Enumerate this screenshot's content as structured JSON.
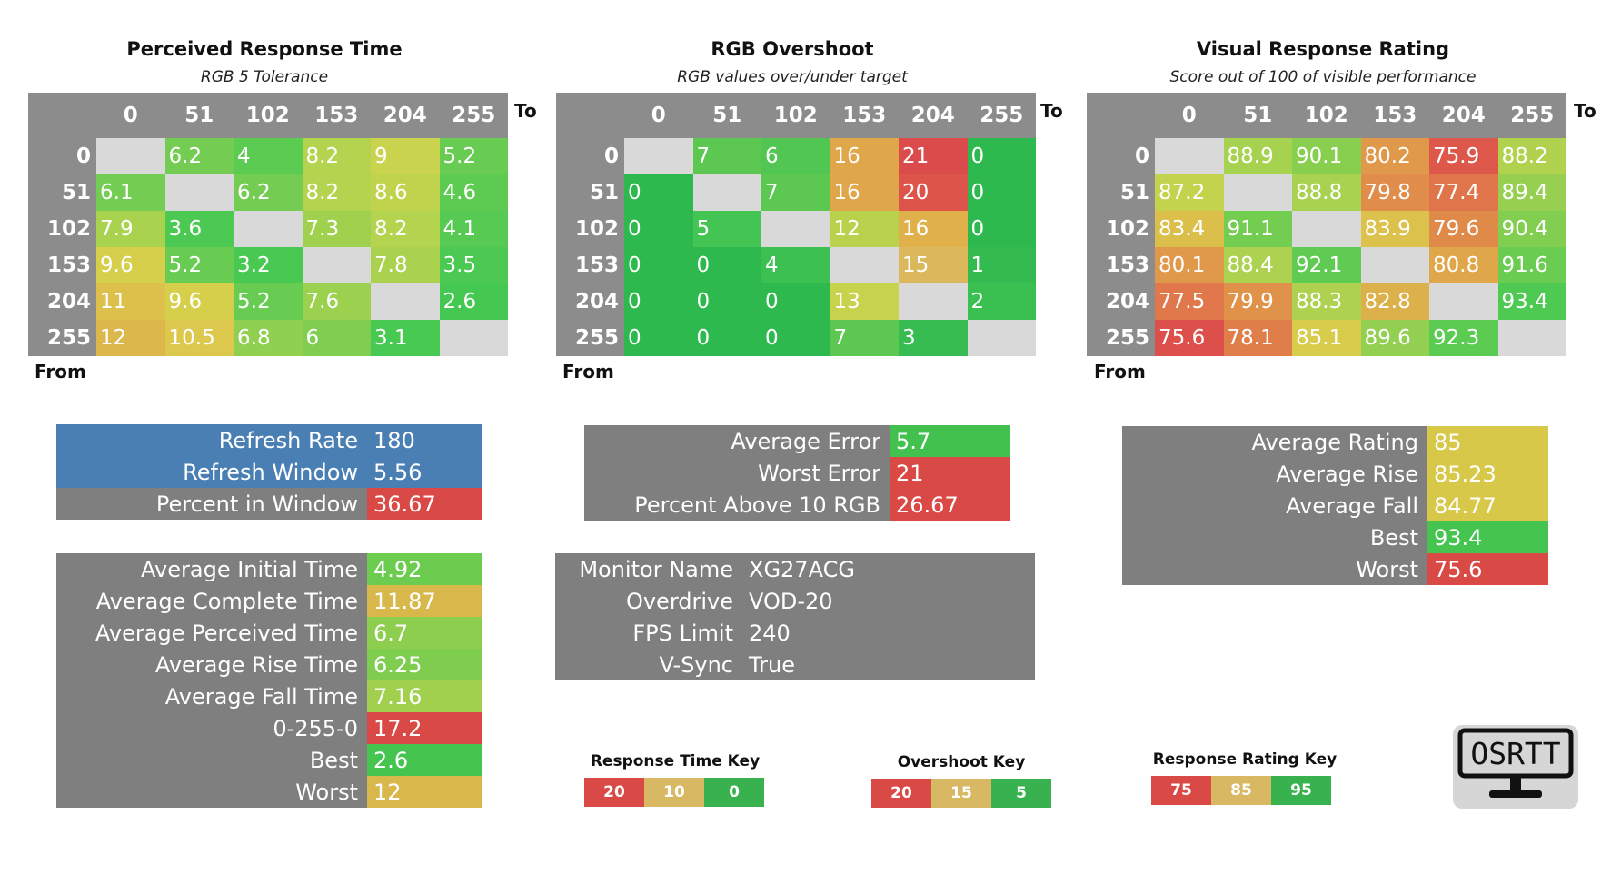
{
  "chart_data": [
    {
      "type": "heatmap",
      "title": "Perceived Response Time",
      "subtitle": "RGB 5 Tolerance",
      "xlabel": "To",
      "ylabel": "From",
      "columns": [
        "0",
        "51",
        "102",
        "153",
        "204",
        "255"
      ],
      "rows": [
        "0",
        "51",
        "102",
        "153",
        "204",
        "255"
      ],
      "values": [
        [
          "",
          "6.2",
          "4",
          "8.2",
          "9",
          "5.2"
        ],
        [
          "6.1",
          "",
          "6.2",
          "8.2",
          "8.6",
          "4.6"
        ],
        [
          "7.9",
          "3.6",
          "",
          "7.3",
          "8.2",
          "4.1"
        ],
        [
          "9.6",
          "5.2",
          "3.2",
          "",
          "7.8",
          "3.5"
        ],
        [
          "11",
          "9.6",
          "5.2",
          "7.6",
          "",
          "2.6"
        ],
        [
          "12",
          "10.5",
          "6.8",
          "6",
          "3.1",
          ""
        ]
      ],
      "colors": [
        [
          "",
          "#74cd52",
          "#5ccb52",
          "#b4d34e",
          "#c9d34d",
          "#68cc52"
        ],
        [
          "#73cd52",
          "",
          "#74cd52",
          "#b4d34e",
          "#bfd34d",
          "#5dcb52"
        ],
        [
          "#a9d24e",
          "#4bc952",
          "",
          "#9fd14f",
          "#b4d34e",
          "#56ca52"
        ],
        [
          "#d6cf4c",
          "#68cc52",
          "#49c952",
          "",
          "#aad24f",
          "#4cc952"
        ],
        [
          "#dcc04b",
          "#d6cf4c",
          "#68cc52",
          "#9bd14f",
          "",
          "#44c852"
        ],
        [
          "#dcb74b",
          "#dcc84c",
          "#8fd050",
          "#80ce51",
          "#48c952",
          ""
        ]
      ]
    },
    {
      "type": "heatmap",
      "title": "RGB Overshoot",
      "subtitle": "RGB values over/under target",
      "xlabel": "To",
      "ylabel": "From",
      "columns": [
        "0",
        "51",
        "102",
        "153",
        "204",
        "255"
      ],
      "rows": [
        "0",
        "51",
        "102",
        "153",
        "204",
        "255"
      ],
      "values": [
        [
          "",
          "7",
          "6",
          "16",
          "21",
          "0"
        ],
        [
          "0",
          "",
          "7",
          "16",
          "20",
          "0"
        ],
        [
          "0",
          "5",
          "",
          "12",
          "16",
          "0"
        ],
        [
          "0",
          "0",
          "4",
          "",
          "15",
          "1"
        ],
        [
          "0",
          "0",
          "0",
          "13",
          "",
          "2"
        ],
        [
          "0",
          "0",
          "0",
          "7",
          "3",
          ""
        ]
      ],
      "colors": [
        [
          "",
          "#5cc852",
          "#52c652",
          "#e0a64a",
          "#db4b4b",
          "#2eb94f"
        ],
        [
          "#2eb94f",
          "",
          "#5cc852",
          "#e0a64a",
          "#dc544a",
          "#2eb94f"
        ],
        [
          "#2eb94f",
          "#44c452",
          "",
          "#b9d24e",
          "#e0b04a",
          "#2eb94f"
        ],
        [
          "#2eb94f",
          "#2eb94f",
          "#3dc052",
          "",
          "#dcb85d",
          "#34bb50"
        ],
        [
          "#2eb94f",
          "#2eb94f",
          "#2eb94f",
          "#c8d34d",
          "",
          "#3abf51"
        ],
        [
          "#2eb94f",
          "#2eb94f",
          "#2eb94f",
          "#5cc852",
          "#36bc50",
          ""
        ]
      ]
    },
    {
      "type": "heatmap",
      "title": "Visual Response Rating",
      "subtitle": "Score out of 100 of visible performance",
      "xlabel": "To",
      "ylabel": "From",
      "columns": [
        "0",
        "51",
        "102",
        "153",
        "204",
        "255"
      ],
      "rows": [
        "0",
        "51",
        "102",
        "153",
        "204",
        "255"
      ],
      "values": [
        [
          "",
          "88.9",
          "90.1",
          "80.2",
          "75.9",
          "88.2"
        ],
        [
          "87.2",
          "",
          "88.8",
          "79.8",
          "77.4",
          "89.4"
        ],
        [
          "83.4",
          "91.1",
          "",
          "83.9",
          "79.6",
          "90.4"
        ],
        [
          "80.1",
          "88.4",
          "92.1",
          "",
          "80.8",
          "91.6"
        ],
        [
          "77.5",
          "79.9",
          "88.3",
          "82.8",
          "",
          "93.4"
        ],
        [
          "75.6",
          "78.1",
          "85.1",
          "89.6",
          "92.3",
          ""
        ]
      ],
      "colors": [
        [
          "",
          "#a6d24f",
          "#88cf50",
          "#e0994a",
          "#dd584b",
          "#b0d24f"
        ],
        [
          "#c4d34d",
          "",
          "#a8d24f",
          "#e08c4a",
          "#e0744b",
          "#97d050"
        ],
        [
          "#dcbf4b",
          "#72cd51",
          "",
          "#dcc24c",
          "#e08a4a",
          "#82ce51"
        ],
        [
          "#e0984a",
          "#acd24f",
          "#60cb52",
          "",
          "#e0a64a",
          "#6acc51"
        ],
        [
          "#e0784b",
          "#e0924a",
          "#aed24f",
          "#dcb04b",
          "",
          "#4ec952"
        ],
        [
          "#dc4f4b",
          "#e07e4a",
          "#d8cc4c",
          "#93cf50",
          "#5ccb52",
          ""
        ]
      ]
    }
  ],
  "response_stats": {
    "rows": [
      {
        "label": "Refresh Rate",
        "value": "180",
        "label_color": "#4a7fb3",
        "value_color": "#4a7fb3"
      },
      {
        "label": "Refresh Window",
        "value": "5.56",
        "label_color": "#4a7fb3",
        "value_color": "#4a7fb3"
      },
      {
        "label": "Percent in Window",
        "value": "36.67",
        "label_color": "#7f7f7f",
        "value_color": "#d94a47"
      }
    ]
  },
  "time_stats": {
    "rows": [
      {
        "label": "Average Initial Time",
        "value": "4.92",
        "value_color": "#6ccc4f"
      },
      {
        "label": "Average Complete Time",
        "value": "11.87",
        "value_color": "#d9b84b"
      },
      {
        "label": "Average Perceived Time",
        "value": "6.7",
        "value_color": "#8ece4f"
      },
      {
        "label": "Average Rise Time",
        "value": "6.25",
        "value_color": "#7fcd4f"
      },
      {
        "label": "Average Fall Time",
        "value": "7.16",
        "value_color": "#a0d04e"
      },
      {
        "label": "0-255-0",
        "value": "17.2",
        "value_color": "#d94a47"
      },
      {
        "label": "Best",
        "value": "2.6",
        "value_color": "#45c44f"
      },
      {
        "label": "Worst",
        "value": "12",
        "value_color": "#d9b84b"
      }
    ]
  },
  "error_stats": {
    "rows": [
      {
        "label": "Average Error",
        "value": "5.7",
        "value_color": "#43c14e"
      },
      {
        "label": "Worst Error",
        "value": "21",
        "value_color": "#d94a47"
      },
      {
        "label": "Percent Above 10 RGB",
        "value": "26.67",
        "value_color": "#d94a47"
      }
    ]
  },
  "monitor_info": {
    "rows": [
      {
        "label": "Monitor Name",
        "value": "XG27ACG"
      },
      {
        "label": "Overdrive",
        "value": "VOD-20"
      },
      {
        "label": "FPS Limit",
        "value": "240"
      },
      {
        "label": "V-Sync",
        "value": "True"
      }
    ]
  },
  "rating_stats": {
    "rows": [
      {
        "label": "Average Rating",
        "value": "85",
        "value_color": "#d8c84a"
      },
      {
        "label": "Average Rise",
        "value": "85.23",
        "value_color": "#d8c84a"
      },
      {
        "label": "Average Fall",
        "value": "84.77",
        "value_color": "#d8c84a"
      },
      {
        "label": "Best",
        "value": "93.4",
        "value_color": "#45c44f"
      },
      {
        "label": "Worst",
        "value": "75.6",
        "value_color": "#d94a47"
      }
    ]
  },
  "keys": [
    {
      "title": "Response Time Key",
      "items": [
        {
          "label": "20",
          "color": "#d94a47"
        },
        {
          "label": "10",
          "color": "#d9b863"
        },
        {
          "label": "0",
          "color": "#38b24f"
        }
      ]
    },
    {
      "title": "Overshoot Key",
      "items": [
        {
          "label": "20",
          "color": "#d94a47"
        },
        {
          "label": "15",
          "color": "#d9b863"
        },
        {
          "label": "5",
          "color": "#38b24f"
        }
      ]
    },
    {
      "title": "Response Rating Key",
      "items": [
        {
          "label": "75",
          "color": "#d94a47"
        },
        {
          "label": "85",
          "color": "#d9b863"
        },
        {
          "label": "95",
          "color": "#38b24f"
        }
      ]
    }
  ],
  "logo": {
    "text": "OSRTT"
  }
}
